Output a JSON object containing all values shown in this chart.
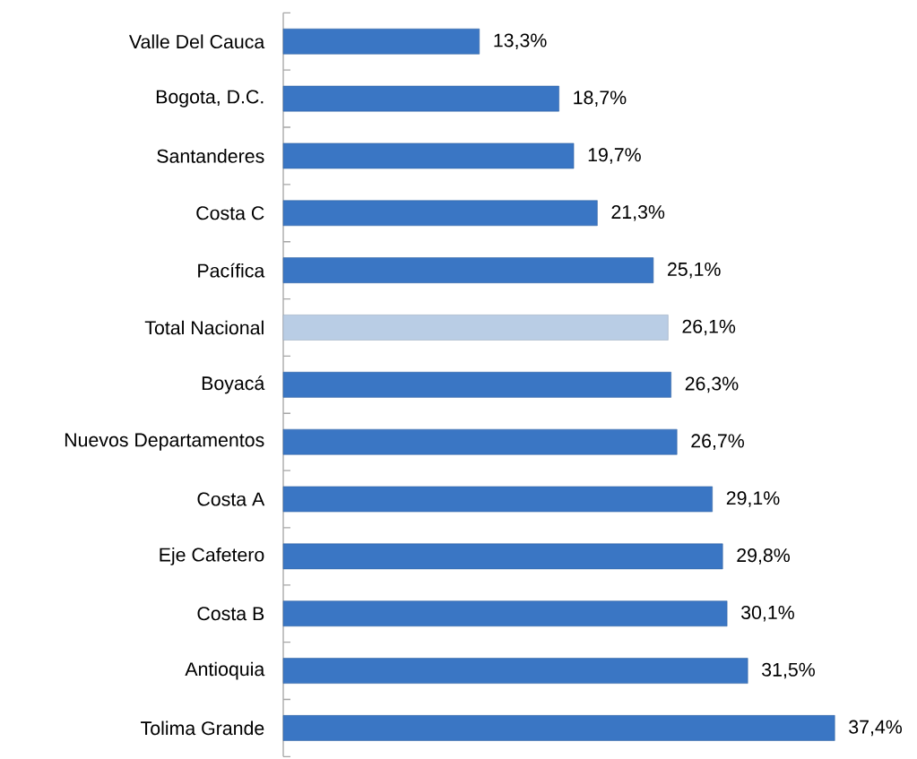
{
  "chart_data": {
    "type": "bar",
    "orientation": "horizontal",
    "relative": false,
    "categories": [
      "Valle Del Cauca",
      "Bogota, D.C.",
      "Santanderes",
      "Costa C",
      "Pacífica",
      "Total Nacional",
      "Boyacá",
      "Nuevos Departamentos",
      "Costa A",
      "Eje Cafetero",
      "Costa B",
      "Antioquia",
      "Tolima Grande"
    ],
    "values": [
      13.3,
      18.7,
      19.7,
      21.3,
      25.1,
      26.1,
      26.3,
      26.7,
      29.1,
      29.8,
      30.1,
      31.5,
      37.4
    ],
    "colors": [
      "#3a76c4",
      "#3a76c4",
      "#3a76c4",
      "#3a76c4",
      "#3a76c4",
      "#b9cde5",
      "#3a76c4",
      "#3a76c4",
      "#3a76c4",
      "#3a76c4",
      "#3a76c4",
      "#3a76c4",
      "#3a76c4"
    ],
    "value_labels": [
      "13,3%",
      "18,7%",
      "19,7%",
      "21,3%",
      "25,1%",
      "26,1%",
      "26,3%",
      "26,7%",
      "29,1%",
      "29,8%",
      "30,1%",
      "31,5%",
      "37,4%"
    ]
  }
}
